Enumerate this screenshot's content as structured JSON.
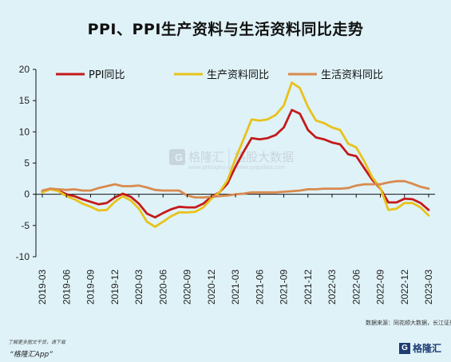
{
  "title": "PPI、PPI生产资料与生活资料同比走势",
  "source": "数据来源：同花顺大数据，长江证券",
  "footer": {
    "note": "了解更多图文干货，请下载",
    "app": "“格隆汇App”",
    "logo_mark": "G",
    "logo_text": "格隆汇"
  },
  "watermark": {
    "brand1": "格隆汇",
    "brand1_url": "www.gelonghui.com",
    "brand2": "格股大数据",
    "brand2_url": "www.gogudata.com"
  },
  "colors": {
    "background": "#dff2f8",
    "ppi": "#c41a1a",
    "production": "#e8c21b",
    "consumer": "#d98a4e"
  },
  "chart_data": {
    "type": "line",
    "title": "PPI、PPI生产资料与生活资料同比走势",
    "xlabel": "",
    "ylabel": "",
    "ylim": [
      -10,
      20
    ],
    "yticks": [
      -10,
      -5,
      0,
      5,
      10,
      15,
      20
    ],
    "xtick_labels": [
      "2019-03",
      "2019-06",
      "2019-09",
      "2019-12",
      "2020-03",
      "2020-06",
      "2020-09",
      "2020-12",
      "2021-03",
      "2021-06",
      "2021-09",
      "2021-12",
      "2022-03",
      "2022-06",
      "2022-09",
      "2022-12",
      "2023-03"
    ],
    "x": [
      "2019-03",
      "2019-04",
      "2019-05",
      "2019-06",
      "2019-07",
      "2019-08",
      "2019-09",
      "2019-10",
      "2019-11",
      "2019-12",
      "2020-01",
      "2020-02",
      "2020-03",
      "2020-04",
      "2020-05",
      "2020-06",
      "2020-07",
      "2020-08",
      "2020-09",
      "2020-10",
      "2020-11",
      "2020-12",
      "2021-01",
      "2021-02",
      "2021-03",
      "2021-04",
      "2021-05",
      "2021-06",
      "2021-07",
      "2021-08",
      "2021-09",
      "2021-10",
      "2021-11",
      "2021-12",
      "2022-01",
      "2022-02",
      "2022-03",
      "2022-04",
      "2022-05",
      "2022-06",
      "2022-07",
      "2022-08",
      "2022-09",
      "2022-10",
      "2022-11",
      "2022-12",
      "2023-01",
      "2023-02",
      "2023-03"
    ],
    "legend_position": "top",
    "grid": false,
    "series": [
      {
        "name": "PPI同比",
        "color": "#c41a1a",
        "values": [
          0.4,
          0.9,
          0.6,
          0.0,
          -0.3,
          -0.8,
          -1.2,
          -1.6,
          -1.4,
          -0.5,
          0.1,
          -0.4,
          -1.5,
          -3.1,
          -3.7,
          -3.0,
          -2.4,
          -2.0,
          -2.1,
          -2.1,
          -1.5,
          -0.4,
          0.3,
          1.7,
          4.4,
          6.8,
          9.0,
          8.8,
          9.0,
          9.5,
          10.7,
          13.5,
          12.9,
          10.3,
          9.1,
          8.8,
          8.3,
          8.0,
          6.4,
          6.1,
          4.2,
          2.3,
          0.9,
          -1.3,
          -1.3,
          -0.7,
          -0.8,
          -1.4,
          -2.5
        ]
      },
      {
        "name": "生产资料同比",
        "color": "#e8c21b",
        "values": [
          0.3,
          0.8,
          0.5,
          -0.3,
          -0.8,
          -1.5,
          -2.0,
          -2.6,
          -2.5,
          -1.2,
          -0.3,
          -1.0,
          -2.3,
          -4.4,
          -5.2,
          -4.4,
          -3.5,
          -2.9,
          -2.9,
          -2.8,
          -2.1,
          -0.7,
          0.3,
          2.2,
          5.7,
          8.8,
          12.0,
          11.8,
          12.0,
          12.7,
          14.2,
          17.9,
          17.0,
          14.0,
          11.8,
          11.4,
          10.7,
          10.3,
          8.1,
          7.5,
          5.3,
          2.7,
          1.0,
          -2.5,
          -2.3,
          -1.4,
          -1.4,
          -2.1,
          -3.4
        ]
      },
      {
        "name": "生活资料同比",
        "color": "#d98a4e",
        "values": [
          0.6,
          0.9,
          0.8,
          0.7,
          0.8,
          0.6,
          0.6,
          1.0,
          1.3,
          1.6,
          1.3,
          1.3,
          1.4,
          1.1,
          0.7,
          0.6,
          0.6,
          0.6,
          -0.2,
          -0.5,
          -0.5,
          -0.4,
          -0.3,
          -0.2,
          0.0,
          0.1,
          0.3,
          0.3,
          0.3,
          0.3,
          0.4,
          0.5,
          0.6,
          0.8,
          0.8,
          0.9,
          0.9,
          0.9,
          1.0,
          1.4,
          1.6,
          1.6,
          1.6,
          1.9,
          2.1,
          2.1,
          1.7,
          1.2,
          0.9
        ]
      }
    ]
  }
}
